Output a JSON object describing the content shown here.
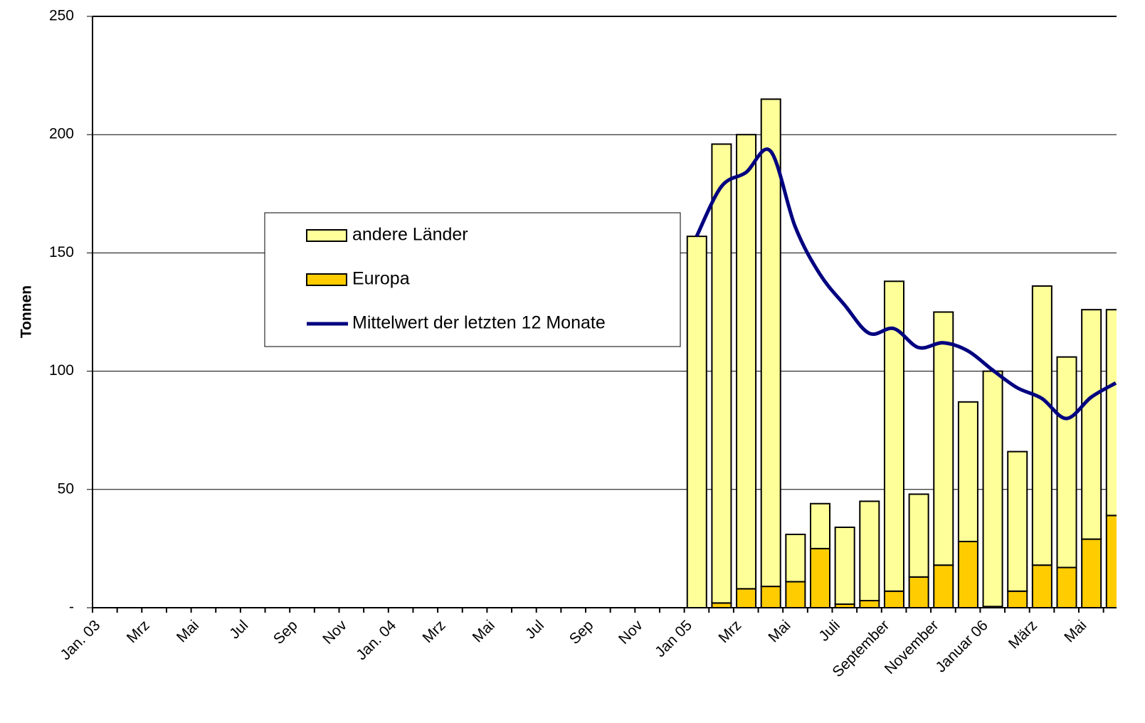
{
  "chart_data": {
    "type": "bar",
    "y_label": "Tonnen",
    "categories": [
      "Jan. 03",
      null,
      "Mrz",
      null,
      "Mai",
      null,
      "Jul",
      null,
      "Sep",
      null,
      "Nov",
      null,
      "Jan. 04",
      null,
      "Mrz",
      null,
      "Mai",
      null,
      "Jul",
      null,
      "Sep",
      null,
      "Nov",
      null,
      "Jan 05",
      null,
      "Mrz",
      null,
      "Mai",
      null,
      "Juli",
      null,
      "September",
      null,
      "November",
      null,
      "Januar 06",
      null,
      "März",
      null,
      "Mai",
      null
    ],
    "series": [
      {
        "name": "Europa",
        "color": "#ffcc00",
        "values": [
          null,
          null,
          null,
          null,
          null,
          null,
          null,
          null,
          null,
          null,
          null,
          null,
          null,
          null,
          null,
          null,
          null,
          null,
          null,
          null,
          null,
          null,
          null,
          null,
          0,
          2,
          8,
          9,
          11,
          25,
          1.5,
          3,
          7,
          13,
          18,
          28,
          0.5,
          7,
          18,
          17,
          29,
          39
        ]
      },
      {
        "name": "andere Länder",
        "color": "#ffff99",
        "values": [
          null,
          null,
          null,
          null,
          null,
          null,
          null,
          null,
          null,
          null,
          null,
          null,
          null,
          null,
          null,
          null,
          null,
          null,
          null,
          null,
          null,
          null,
          null,
          null,
          157,
          194,
          192,
          206,
          20,
          19,
          32.5,
          42,
          131,
          35,
          107,
          59,
          99.5,
          59,
          118,
          89,
          97,
          87
        ]
      },
      {
        "name": "Mittelwert der letzten 12 Monate",
        "type": "line",
        "color": "#000080",
        "values": [
          null,
          null,
          null,
          null,
          null,
          null,
          null,
          null,
          null,
          null,
          null,
          null,
          null,
          null,
          null,
          null,
          null,
          null,
          null,
          null,
          null,
          null,
          null,
          null,
          157,
          178,
          184,
          193,
          161,
          141,
          128,
          116,
          118,
          110,
          112,
          108.6,
          100.5,
          93,
          88.5,
          80,
          89,
          95
        ]
      }
    ],
    "ylim": [
      0,
      250
    ],
    "yticks": [
      {
        "value": 0,
        "label": "-"
      },
      50,
      100,
      150,
      200,
      250
    ],
    "grid": true
  }
}
